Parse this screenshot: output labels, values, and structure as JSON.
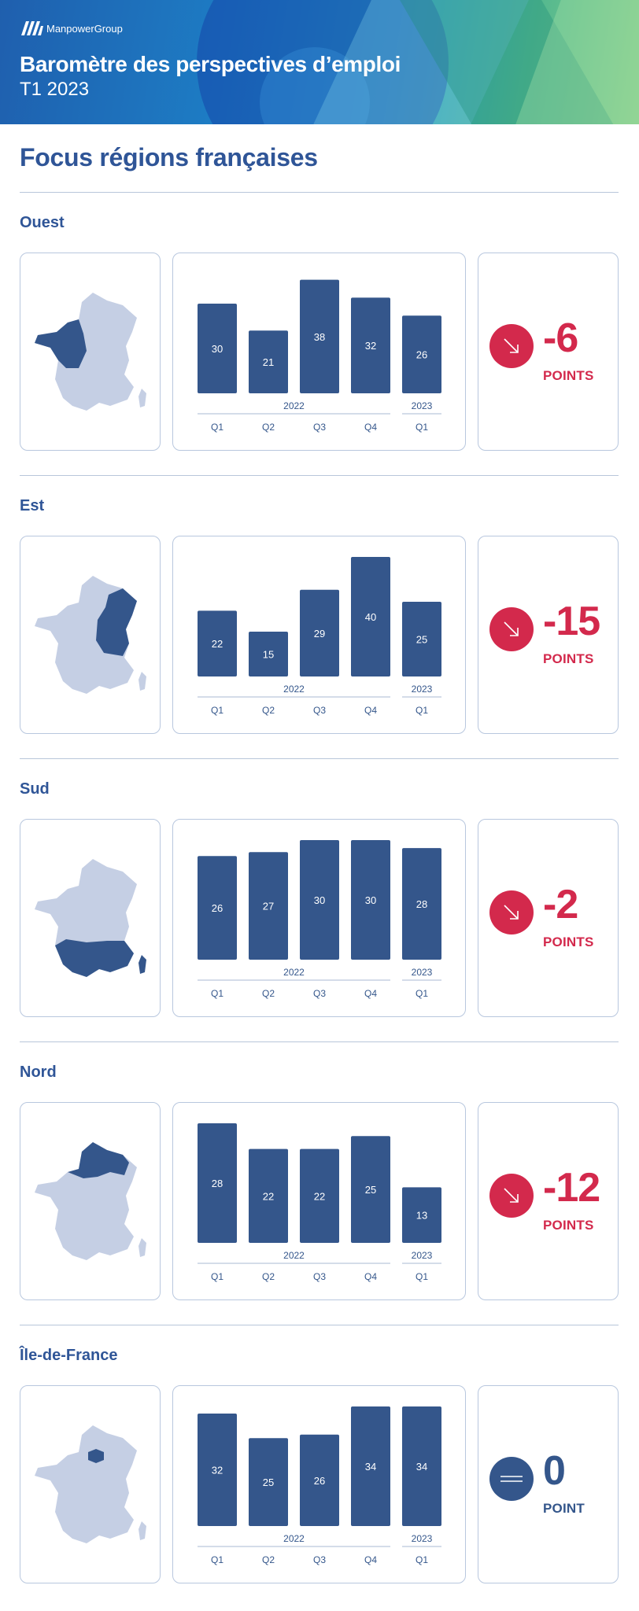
{
  "header": {
    "brand": "ManpowerGroup",
    "title": "Baromètre des perspectives d’emploi",
    "subtitle": "T1 2023"
  },
  "page_heading": "Focus régions françaises",
  "colors": {
    "bar": "#34568b",
    "negative": "#d3294c",
    "neutral": "#34568b",
    "map_base": "#c5cfe4",
    "map_highlight": "#34568b"
  },
  "regions": [
    {
      "name": "Ouest",
      "delta": "-6",
      "unit": "POINTS",
      "trend": "down",
      "highlight": "west"
    },
    {
      "name": "Est",
      "delta": "-15",
      "unit": "POINTS",
      "trend": "down",
      "highlight": "east"
    },
    {
      "name": "Sud",
      "delta": "-2",
      "unit": "POINTS",
      "trend": "down",
      "highlight": "south"
    },
    {
      "name": "Nord",
      "delta": "-12",
      "unit": "POINTS",
      "trend": "down",
      "highlight": "north"
    },
    {
      "name": "Île-de-France",
      "delta": "0",
      "unit": "POINT",
      "trend": "flat",
      "highlight": "idf"
    }
  ],
  "chart_data": [
    {
      "type": "bar",
      "region": "Ouest",
      "categories": [
        "Q1",
        "Q2",
        "Q3",
        "Q4",
        "Q1"
      ],
      "groups": [
        {
          "label": "2022",
          "span": [
            0,
            3
          ]
        },
        {
          "label": "2023",
          "span": [
            4,
            4
          ]
        }
      ],
      "values": [
        30,
        21,
        38,
        32,
        26
      ],
      "ylim": [
        0,
        40
      ]
    },
    {
      "type": "bar",
      "region": "Est",
      "categories": [
        "Q1",
        "Q2",
        "Q3",
        "Q4",
        "Q1"
      ],
      "groups": [
        {
          "label": "2022",
          "span": [
            0,
            3
          ]
        },
        {
          "label": "2023",
          "span": [
            4,
            4
          ]
        }
      ],
      "values": [
        22,
        15,
        29,
        40,
        25
      ],
      "ylim": [
        0,
        40
      ]
    },
    {
      "type": "bar",
      "region": "Sud",
      "categories": [
        "Q1",
        "Q2",
        "Q3",
        "Q4",
        "Q1"
      ],
      "groups": [
        {
          "label": "2022",
          "span": [
            0,
            3
          ]
        },
        {
          "label": "2023",
          "span": [
            4,
            4
          ]
        }
      ],
      "values": [
        26,
        27,
        30,
        30,
        28
      ],
      "ylim": [
        0,
        30
      ]
    },
    {
      "type": "bar",
      "region": "Nord",
      "categories": [
        "Q1",
        "Q2",
        "Q3",
        "Q4",
        "Q1"
      ],
      "groups": [
        {
          "label": "2022",
          "span": [
            0,
            3
          ]
        },
        {
          "label": "2023",
          "span": [
            4,
            4
          ]
        }
      ],
      "values": [
        28,
        22,
        22,
        25,
        13
      ],
      "ylim": [
        0,
        28
      ]
    },
    {
      "type": "bar",
      "region": "Île-de-France",
      "categories": [
        "Q1",
        "Q2",
        "Q3",
        "Q4",
        "Q1"
      ],
      "groups": [
        {
          "label": "2022",
          "span": [
            0,
            3
          ]
        },
        {
          "label": "2023",
          "span": [
            4,
            4
          ]
        }
      ],
      "values": [
        32,
        25,
        26,
        34,
        34
      ],
      "ylim": [
        0,
        34
      ]
    }
  ]
}
